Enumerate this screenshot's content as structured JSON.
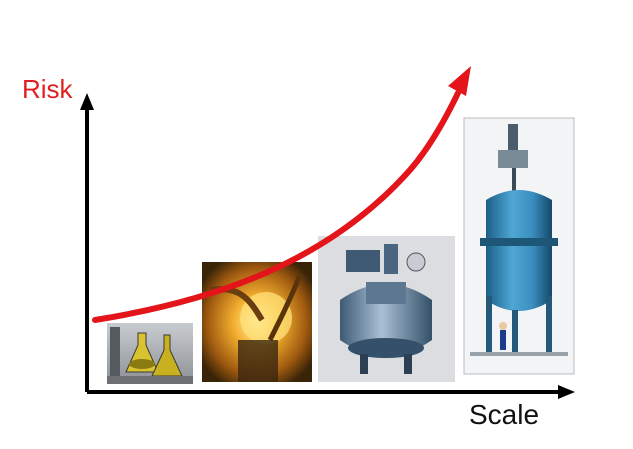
{
  "labels": {
    "y_axis": "Risk",
    "x_axis": "Scale"
  },
  "colors": {
    "axis": "#000000",
    "risk_label": "#e02020",
    "scale_label": "#111111",
    "curve": "#e3151b"
  },
  "images": [
    {
      "name": "lab-glassware-photo",
      "description_icon": "flask-photo"
    },
    {
      "name": "pilot-reactor-photo",
      "description_icon": "glowing-reactor-photo"
    },
    {
      "name": "industrial-reactor-photo",
      "description_icon": "steel-vessel-photo"
    },
    {
      "name": "plant-scale-reactor-photo",
      "description_icon": "large-blue-vessel-photo"
    }
  ]
}
